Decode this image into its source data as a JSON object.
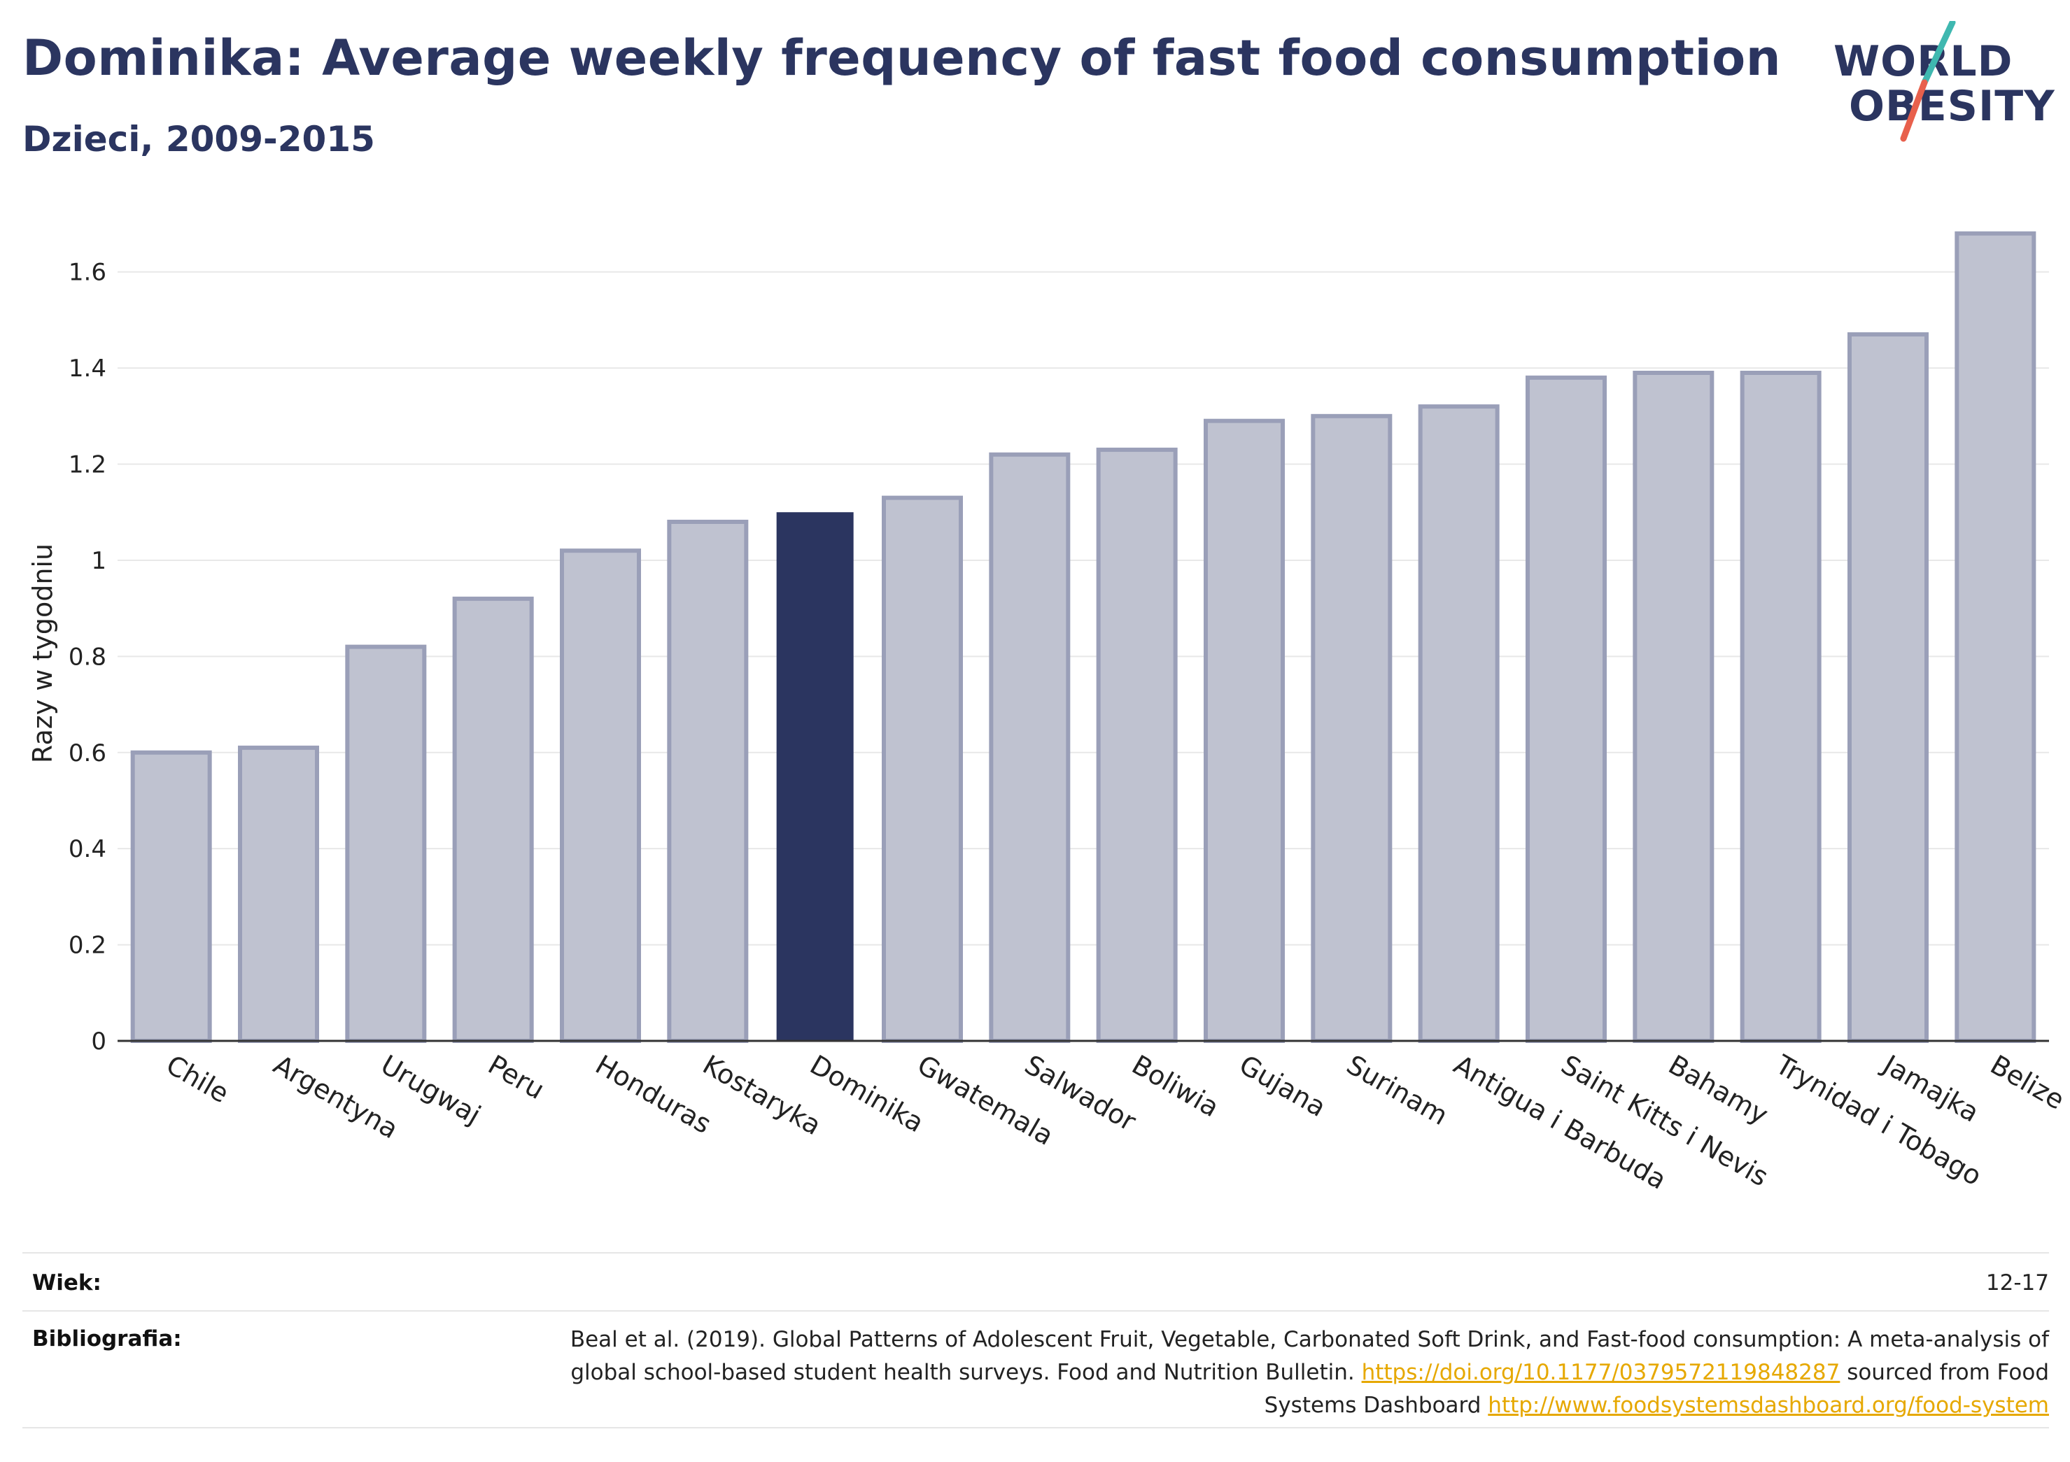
{
  "header": {
    "title": "Dominika: Average weekly frequency of fast food consumption",
    "subtitle": "Dzieci, 2009-2015"
  },
  "logo": {
    "line1": "WORLD",
    "line2": "OBESITY",
    "accent_teal": "#3fb8b0",
    "accent_red": "#e8604c"
  },
  "chart_data": {
    "type": "bar",
    "categories": [
      "Chile",
      "Argentyna",
      "Urugwaj",
      "Peru",
      "Honduras",
      "Kostaryka",
      "Dominika",
      "Gwatemala",
      "Salwador",
      "Boliwia",
      "Gujana",
      "Surinam",
      "Antigua i Barbuda",
      "Saint Kitts i Nevis",
      "Bahamy",
      "Trynidad i Tobago",
      "Jamajka",
      "Belize"
    ],
    "values": [
      0.6,
      0.61,
      0.82,
      0.92,
      1.02,
      1.08,
      1.1,
      1.13,
      1.22,
      1.23,
      1.29,
      1.3,
      1.32,
      1.38,
      1.39,
      1.39,
      1.47,
      1.68
    ],
    "highlight": "Dominika",
    "ylabel": "Razy w tygodniu",
    "xlabel": "",
    "ylim": [
      0,
      1.7
    ],
    "yticks": [
      "0",
      "0.2",
      "0.4",
      "0.6",
      "0.8",
      "1",
      "1.2",
      "1.4",
      "1.6"
    ],
    "grid": true,
    "colors": {
      "bar": "#bfc2d0",
      "bar_edge": "#9a9fb8",
      "highlight": "#2b3560",
      "grid": "#e8e8e8",
      "axis": "#333333"
    }
  },
  "footer": {
    "age_label": "Wiek:",
    "age_value": "12-17",
    "bib_label": "Bibliografia:",
    "bib_text1": "Beal et al. (2019). Global Patterns of Adolescent Fruit, Vegetable, Carbonated Soft Drink, and Fast-food consumption: A meta-analysis of global school-based student health surveys. Food and Nutrition Bulletin.",
    "bib_link1": "https://doi.org/10.1177/0379572119848287",
    "bib_text2": "sourced from Food Systems Dashboard",
    "bib_link2": "http://www.foodsystemsdashboard.org/food-system"
  }
}
